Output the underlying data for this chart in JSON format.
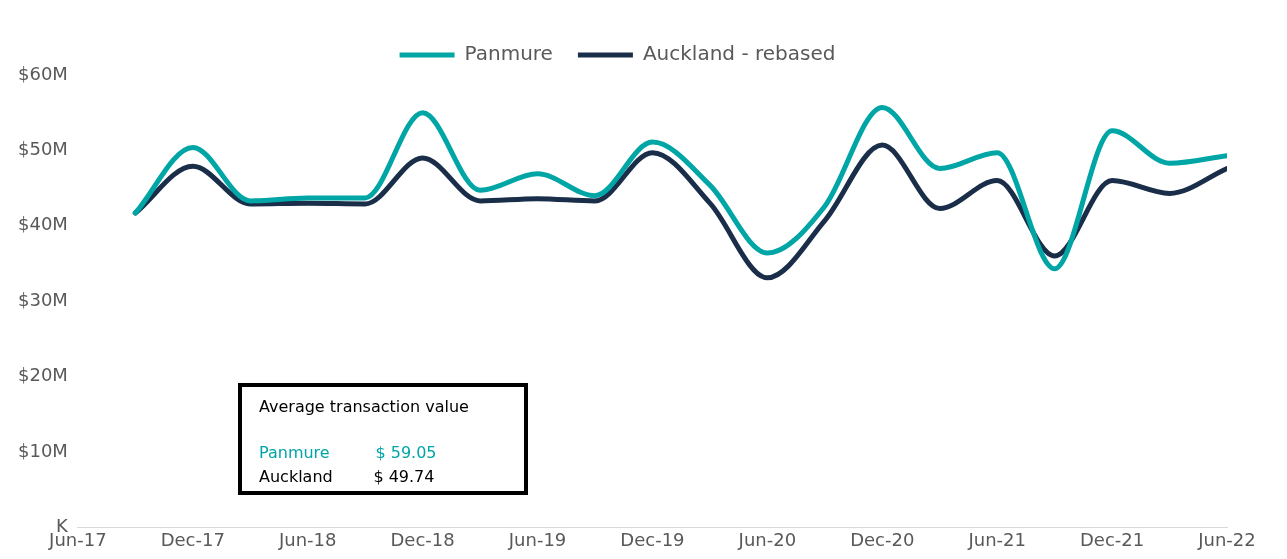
{
  "chart_data": {
    "type": "line",
    "x": [
      "2017-09",
      "2017-12",
      "2018-03",
      "2018-06",
      "2018-09",
      "2018-12",
      "2019-03",
      "2019-06",
      "2019-09",
      "2019-12",
      "2020-03",
      "2020-06",
      "2020-09",
      "2020-12",
      "2021-03",
      "2021-06",
      "2021-09",
      "2021-12",
      "2022-03",
      "2022-06"
    ],
    "series": [
      {
        "name": "Panmure",
        "color": "#00a5a5",
        "values": [
          41.7,
          50.4,
          43.3,
          43.7,
          43.7,
          55.0,
          44.7,
          46.9,
          44.0,
          51.1,
          45.4,
          36.4,
          42.6,
          55.7,
          47.6,
          49.7,
          34.3,
          52.6,
          48.3,
          49.3
        ]
      },
      {
        "name": "Auckland - rebased",
        "color": "#1a2e4a",
        "values": [
          41.7,
          47.9,
          42.9,
          43.0,
          42.9,
          49.0,
          43.3,
          43.6,
          43.3,
          49.7,
          43.0,
          33.1,
          40.7,
          50.7,
          42.3,
          46.0,
          36.0,
          46.0,
          44.3,
          47.6
        ]
      }
    ],
    "xlim": [
      "2017-06",
      "2022-06"
    ],
    "xticks": [
      {
        "value": "2017-06",
        "label": "Jun-17"
      },
      {
        "value": "2017-12",
        "label": "Dec-17"
      },
      {
        "value": "2018-06",
        "label": "Jun-18"
      },
      {
        "value": "2018-12",
        "label": "Dec-18"
      },
      {
        "value": "2019-06",
        "label": "Jun-19"
      },
      {
        "value": "2019-12",
        "label": "Dec-19"
      },
      {
        "value": "2020-06",
        "label": "Jun-20"
      },
      {
        "value": "2020-12",
        "label": "Dec-20"
      },
      {
        "value": "2021-06",
        "label": "Jun-21"
      },
      {
        "value": "2021-12",
        "label": "Dec-21"
      },
      {
        "value": "2022-06",
        "label": "Jun-22"
      }
    ],
    "ylim": [
      0,
      60
    ],
    "yticks": [
      {
        "value": 0,
        "label": "K"
      },
      {
        "value": 10,
        "label": "$10M"
      },
      {
        "value": 20,
        "label": "$20M"
      },
      {
        "value": 30,
        "label": "$30M"
      },
      {
        "value": 40,
        "label": "$40M"
      },
      {
        "value": 50,
        "label": "$50M"
      },
      {
        "value": 60,
        "label": "$60M"
      }
    ],
    "grid": false,
    "legend": "top",
    "marker": "none",
    "line_style": "solid",
    "annotations": [
      "Average transaction value",
      "Panmure         $ 59.05",
      "Auckland        $ 49.74"
    ]
  }
}
